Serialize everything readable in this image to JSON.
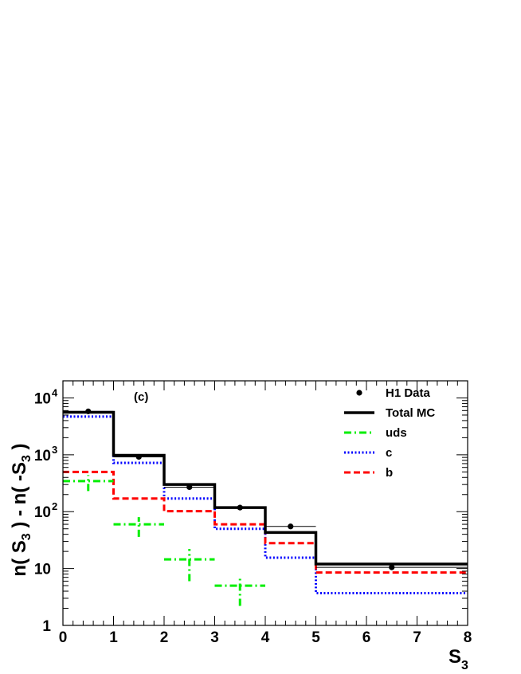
{
  "chart_data": {
    "type": "histogram",
    "panel_label": "(c)",
    "xlabel": "S",
    "xlabel_sub": "3",
    "ylabel_parts": [
      "n( S",
      "3",
      " ) - n( -S",
      "3",
      " )"
    ],
    "xlim": [
      0,
      8
    ],
    "ylim": [
      1,
      20000
    ],
    "yscale": "log",
    "x_ticks": [
      "0",
      "1",
      "2",
      "3",
      "4",
      "5",
      "6",
      "7",
      "8"
    ],
    "y_ticks": [
      {
        "value": 1,
        "base": "1",
        "exp": ""
      },
      {
        "value": 10,
        "base": "10",
        "exp": ""
      },
      {
        "value": 100,
        "base": "10",
        "exp": "2"
      },
      {
        "value": 1000,
        "base": "10",
        "exp": "3"
      },
      {
        "value": 10000,
        "base": "10",
        "exp": "4"
      }
    ],
    "bin_edges": [
      0,
      1,
      2,
      3,
      4,
      5,
      8
    ],
    "legend": {
      "position": "top-right",
      "entries": [
        {
          "label": "H1 Data",
          "style": "marker"
        },
        {
          "label": "Total MC",
          "style": "solid",
          "color": "#000000"
        },
        {
          "label": "uds",
          "style": "dashdot",
          "color": "#00ee00"
        },
        {
          "label": "c",
          "style": "dotted",
          "color": "#0000ff"
        },
        {
          "label": "b",
          "style": "dashed",
          "color": "#ff0000"
        }
      ]
    },
    "series": [
      {
        "name": "H1 Data",
        "type": "points",
        "x": [
          0.5,
          1.5,
          2.5,
          3.5,
          4.5,
          6.5
        ],
        "y": [
          5800,
          920,
          270,
          118,
          55,
          10.5
        ]
      },
      {
        "name": "Total MC",
        "type": "step",
        "color": "#000000",
        "values": [
          5600,
          980,
          300,
          118,
          43,
          12
        ]
      },
      {
        "name": "c",
        "type": "step",
        "color": "#0000ff",
        "values": [
          4700,
          720,
          170,
          50,
          15.5,
          3.7
        ]
      },
      {
        "name": "b",
        "type": "step",
        "color": "#ff0000",
        "values": [
          500,
          170,
          102,
          60,
          28,
          8.5
        ]
      },
      {
        "name": "uds",
        "type": "crosses",
        "color": "#00ee00",
        "x": [
          0.5,
          1.5,
          2.5,
          3.5
        ],
        "y": [
          345,
          60,
          14.5,
          5
        ],
        "y_err_low": [
          230,
          36,
          6,
          2.2
        ],
        "y_err_high": [
          440,
          80,
          22,
          7.5
        ]
      }
    ]
  }
}
